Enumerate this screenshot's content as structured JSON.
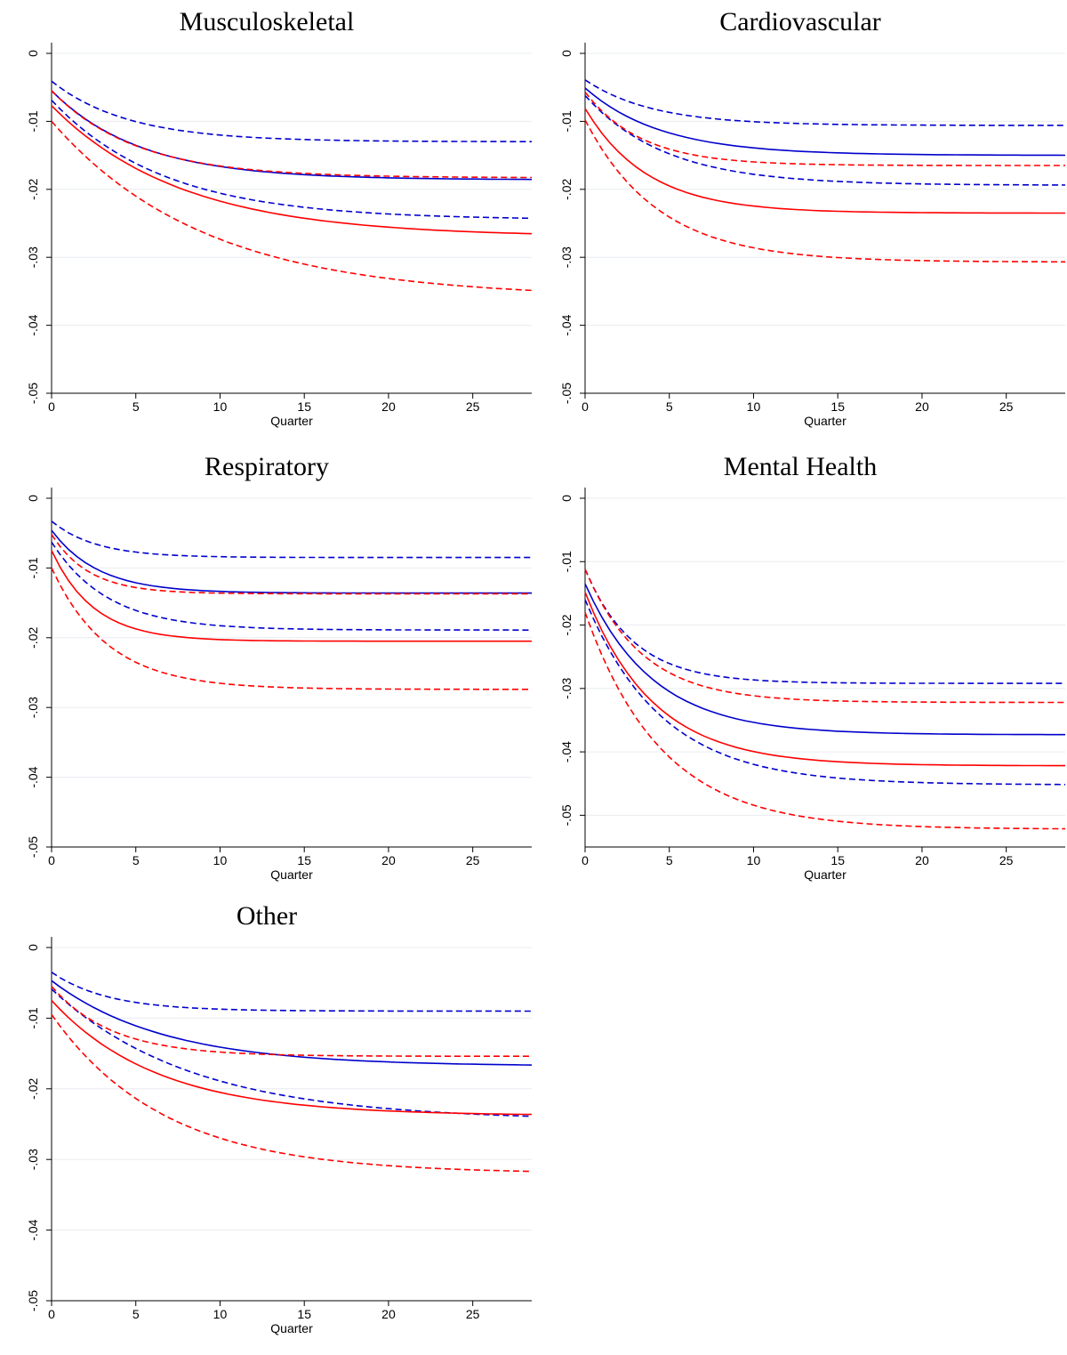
{
  "chart_data": [
    {
      "type": "line",
      "title": "Musculoskeletal",
      "xlabel": "Quarter",
      "ylabel": "",
      "xlim": [
        0,
        28.5
      ],
      "ylim": [
        -0.05,
        0
      ],
      "xticks": [
        "0",
        "5",
        "10",
        "15",
        "20",
        "25"
      ],
      "yticks": [
        "0",
        "-.01",
        "-.02",
        "-.03",
        "-.04",
        "-.05"
      ],
      "grid": true,
      "series": [
        {
          "color": "#0000cc",
          "style": "solid",
          "start": -0.0055,
          "end": -0.0186,
          "rate": 0.19
        },
        {
          "color": "#0000cc",
          "style": "dashed",
          "start": -0.0041,
          "end": -0.013,
          "rate": 0.22
        },
        {
          "color": "#0000cc",
          "style": "dashed",
          "start": -0.0069,
          "end": -0.0245,
          "rate": 0.15
        },
        {
          "color": "#ff0000",
          "style": "solid",
          "start": -0.0077,
          "end": -0.027,
          "rate": 0.13
        },
        {
          "color": "#ff0000",
          "style": "dashed",
          "start": -0.0055,
          "end": -0.0183,
          "rate": 0.2
        },
        {
          "color": "#ff0000",
          "style": "dashed",
          "start": -0.01,
          "end": -0.036,
          "rate": 0.11
        }
      ]
    },
    {
      "type": "line",
      "title": "Cardiovascular",
      "xlabel": "Quarter",
      "ylabel": "",
      "xlim": [
        0,
        28.5
      ],
      "ylim": [
        -0.05,
        0
      ],
      "xticks": [
        "0",
        "5",
        "10",
        "15",
        "20",
        "25"
      ],
      "yticks": [
        "0",
        "-.01",
        "-.02",
        "-.03",
        "-.04",
        "-.05"
      ],
      "grid": true,
      "series": [
        {
          "color": "#0000cc",
          "style": "solid",
          "start": -0.0051,
          "end": -0.015,
          "rate": 0.22
        },
        {
          "color": "#0000cc",
          "style": "dashed",
          "start": -0.0039,
          "end": -0.0106,
          "rate": 0.25
        },
        {
          "color": "#0000cc",
          "style": "dashed",
          "start": -0.0062,
          "end": -0.0194,
          "rate": 0.21
        },
        {
          "color": "#ff0000",
          "style": "solid",
          "start": -0.0081,
          "end": -0.0235,
          "rate": 0.27
        },
        {
          "color": "#ff0000",
          "style": "dashed",
          "start": -0.0057,
          "end": -0.0165,
          "rate": 0.3
        },
        {
          "color": "#ff0000",
          "style": "dashed",
          "start": -0.0098,
          "end": -0.0307,
          "rate": 0.23
        }
      ]
    },
    {
      "type": "line",
      "title": "Respiratory",
      "xlabel": "Quarter",
      "ylabel": "",
      "xlim": [
        0,
        28.5
      ],
      "ylim": [
        -0.05,
        0
      ],
      "xticks": [
        "0",
        "5",
        "10",
        "15",
        "20",
        "25"
      ],
      "yticks": [
        "0",
        "-.01",
        "-.02",
        "-.03",
        "-.04",
        "-.05"
      ],
      "grid": true,
      "series": [
        {
          "color": "#0000cc",
          "style": "solid",
          "start": -0.0046,
          "end": -0.0136,
          "rate": 0.36
        },
        {
          "color": "#0000cc",
          "style": "dashed",
          "start": -0.0033,
          "end": -0.0085,
          "rate": 0.38
        },
        {
          "color": "#0000cc",
          "style": "dashed",
          "start": -0.0063,
          "end": -0.0189,
          "rate": 0.3
        },
        {
          "color": "#ff0000",
          "style": "solid",
          "start": -0.0075,
          "end": -0.0205,
          "rate": 0.4
        },
        {
          "color": "#ff0000",
          "style": "dashed",
          "start": -0.0052,
          "end": -0.0137,
          "rate": 0.45
        },
        {
          "color": "#ff0000",
          "style": "dashed",
          "start": -0.01,
          "end": -0.0274,
          "rate": 0.3
        }
      ]
    },
    {
      "type": "line",
      "title": "Mental Health",
      "xlabel": "Quarter",
      "ylabel": "",
      "xlim": [
        0,
        28.5
      ],
      "ylim": [
        -0.055,
        0
      ],
      "xticks": [
        "0",
        "5",
        "10",
        "15",
        "20",
        "25"
      ],
      "yticks": [
        "0",
        "-.01",
        "-.02",
        "-.03",
        "-.04",
        "-.05"
      ],
      "grid": true,
      "series": [
        {
          "color": "#0000cc",
          "style": "solid",
          "start": -0.0135,
          "end": -0.0373,
          "rate": 0.25
        },
        {
          "color": "#0000cc",
          "style": "dashed",
          "start": -0.0112,
          "end": -0.0292,
          "rate": 0.35
        },
        {
          "color": "#0000cc",
          "style": "dashed",
          "start": -0.016,
          "end": -0.0452,
          "rate": 0.22
        },
        {
          "color": "#ff0000",
          "style": "solid",
          "start": -0.0148,
          "end": -0.0422,
          "rate": 0.25
        },
        {
          "color": "#ff0000",
          "style": "dashed",
          "start": -0.0112,
          "end": -0.0322,
          "rate": 0.3
        },
        {
          "color": "#ff0000",
          "style": "dashed",
          "start": -0.018,
          "end": -0.0522,
          "rate": 0.22
        }
      ]
    },
    {
      "type": "line",
      "title": "Other",
      "xlabel": "Quarter",
      "ylabel": "",
      "xlim": [
        0,
        28.5
      ],
      "ylim": [
        -0.05,
        0
      ],
      "xticks": [
        "0",
        "5",
        "10",
        "15",
        "20",
        "25"
      ],
      "yticks": [
        "0",
        "-.01",
        "-.02",
        "-.03",
        "-.04",
        "-.05"
      ],
      "grid": true,
      "series": [
        {
          "color": "#0000cc",
          "style": "solid",
          "start": -0.0047,
          "end": -0.0168,
          "rate": 0.15
        },
        {
          "color": "#0000cc",
          "style": "dashed",
          "start": -0.0035,
          "end": -0.009,
          "rate": 0.3
        },
        {
          "color": "#0000cc",
          "style": "dashed",
          "start": -0.0059,
          "end": -0.0245,
          "rate": 0.12
        },
        {
          "color": "#ff0000",
          "style": "solid",
          "start": -0.0075,
          "end": -0.0238,
          "rate": 0.16
        },
        {
          "color": "#ff0000",
          "style": "dashed",
          "start": -0.0055,
          "end": -0.0154,
          "rate": 0.28
        },
        {
          "color": "#ff0000",
          "style": "dashed",
          "start": -0.0095,
          "end": -0.032,
          "rate": 0.15
        }
      ]
    }
  ]
}
